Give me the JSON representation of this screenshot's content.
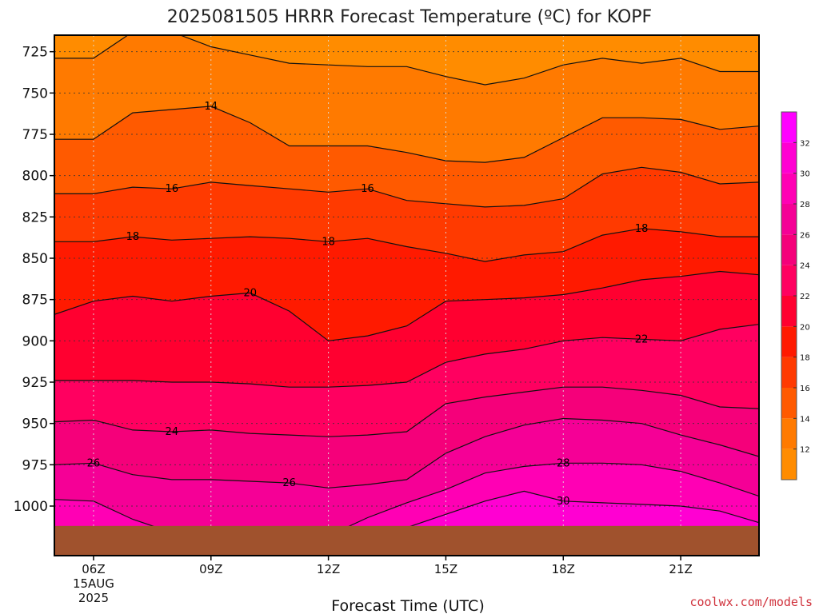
{
  "title": "2025081505 HRRR Forecast Temperature (ºC) for KOPF",
  "credit": "coolwx.com/models",
  "chart_data": {
    "type": "contour",
    "title": "2025081505 HRRR Forecast Temperature (ºC) for KOPF",
    "xlabel": "Forecast Time (UTC)",
    "ylabel": "",
    "x": [
      5,
      6,
      7,
      8,
      9,
      10,
      11,
      12,
      13,
      14,
      15,
      16,
      17,
      18,
      19,
      20,
      21,
      22,
      23
    ],
    "ylim": [
      1030,
      715
    ],
    "xlim": [
      5,
      23
    ],
    "yticks": [
      725,
      750,
      775,
      800,
      825,
      850,
      875,
      900,
      925,
      950,
      975,
      1000
    ],
    "xticks": [
      {
        "value": 6,
        "label": "06Z",
        "sub1": "15AUG",
        "sub2": "2025"
      },
      {
        "value": 9,
        "label": "09Z"
      },
      {
        "value": 12,
        "label": "12Z"
      },
      {
        "value": 15,
        "label": "15Z"
      },
      {
        "value": 18,
        "label": "18Z"
      },
      {
        "value": 21,
        "label": "21Z"
      }
    ],
    "colorbar": {
      "ticks": [
        12,
        14,
        16,
        18,
        20,
        22,
        24,
        26,
        28,
        30,
        32
      ],
      "colors": [
        {
          "range": [
            10,
            12
          ],
          "color": "#ff8c00"
        },
        {
          "range": [
            12,
            14
          ],
          "color": "#ff7a00"
        },
        {
          "range": [
            14,
            16
          ],
          "color": "#ff5a00"
        },
        {
          "range": [
            16,
            18
          ],
          "color": "#ff3a00"
        },
        {
          "range": [
            18,
            20
          ],
          "color": "#ff1a00"
        },
        {
          "range": [
            20,
            22
          ],
          "color": "#ff0030"
        },
        {
          "range": [
            22,
            24
          ],
          "color": "#ff0060"
        },
        {
          "range": [
            24,
            26
          ],
          "color": "#f5007a"
        },
        {
          "range": [
            26,
            28
          ],
          "color": "#f50096"
        },
        {
          "range": [
            28,
            30
          ],
          "color": "#ff00b4"
        },
        {
          "range": [
            30,
            32
          ],
          "color": "#ff00d2"
        },
        {
          "range": [
            32,
            34
          ],
          "color": "#ff00ff"
        }
      ]
    },
    "ground_color": "#a0522d",
    "surface_pressure": 1012,
    "contours": [
      {
        "value": 13,
        "label": "",
        "pressure": [
          729,
          729,
          713,
          713,
          722,
          727,
          732,
          733,
          734,
          734,
          740,
          745,
          741,
          733,
          729,
          732,
          729,
          737,
          737
        ]
      },
      {
        "value": 14,
        "label": "14",
        "label_x": 9,
        "pressure": [
          778,
          778,
          762,
          760,
          758,
          768,
          782,
          782,
          782,
          786,
          791,
          792,
          789,
          777,
          765,
          765,
          766,
          772,
          770
        ]
      },
      {
        "value": 16,
        "label": "16",
        "label_x": 8,
        "label2_x": 13,
        "pressure": [
          811,
          811,
          807,
          808,
          804,
          806,
          808,
          810,
          808,
          815,
          817,
          819,
          818,
          814,
          799,
          795,
          798,
          805,
          804
        ]
      },
      {
        "value": 18,
        "label": "18",
        "label_x": 7,
        "label2_x": 12,
        "label3_x": 20,
        "pressure": [
          840,
          840,
          837,
          839,
          838,
          837,
          838,
          840,
          838,
          843,
          847,
          852,
          848,
          846,
          836,
          832,
          834,
          837,
          837
        ]
      },
      {
        "value": 20,
        "label": "20",
        "label_x": 10,
        "pressure": [
          884,
          876,
          873,
          876,
          873,
          871,
          882,
          900,
          897,
          891,
          876,
          875,
          874,
          872,
          868,
          863,
          861,
          858,
          860
        ]
      },
      {
        "value": 22,
        "label": "22",
        "label_x": 20,
        "pressure": [
          924,
          924,
          924,
          925,
          925,
          926,
          928,
          928,
          927,
          925,
          913,
          908,
          905,
          900,
          898,
          899,
          900,
          893,
          890
        ]
      },
      {
        "value": 24,
        "label": "24",
        "label_x": 8,
        "pressure": [
          949,
          948,
          954,
          955,
          954,
          956,
          957,
          958,
          957,
          955,
          938,
          934,
          931,
          928,
          928,
          930,
          933,
          940,
          941
        ]
      },
      {
        "value": 26,
        "label": "26",
        "label_x": 6,
        "label2_x": 11,
        "pressure": [
          975,
          974,
          981,
          984,
          984,
          985,
          986,
          989,
          987,
          984,
          968,
          958,
          951,
          947,
          948,
          950,
          957,
          963,
          970
        ]
      },
      {
        "value": 28,
        "label": "28",
        "label_x": 18,
        "pressure": [
          996,
          997,
          1008,
          1016,
          1020,
          1020,
          1020,
          1018,
          1007,
          998,
          990,
          980,
          976,
          974,
          974,
          975,
          979,
          986,
          994
        ]
      },
      {
        "value": 30,
        "label": "30",
        "label_x": 18,
        "pressure": [
          1020,
          1020,
          1020,
          1020,
          1020,
          1020,
          1020,
          1020,
          1018,
          1013,
          1005,
          997,
          991,
          997,
          998,
          999,
          1000,
          1003,
          1010
        ]
      }
    ],
    "fill_colors": [
      "#ff8c00",
      "#ff7a00",
      "#ff5a00",
      "#ff3a00",
      "#ff1a00",
      "#ff0030",
      "#ff0060",
      "#f5007a",
      "#f50096",
      "#ff00b4",
      "#ff00d2"
    ]
  }
}
